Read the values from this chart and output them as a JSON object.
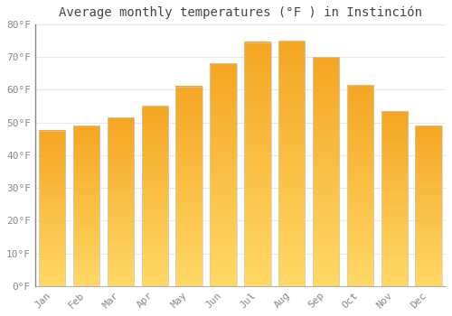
{
  "title": "Average monthly temperatures (°F ) in Instinción",
  "months": [
    "Jan",
    "Feb",
    "Mar",
    "Apr",
    "May",
    "Jun",
    "Jul",
    "Aug",
    "Sep",
    "Oct",
    "Nov",
    "Dec"
  ],
  "values": [
    47.5,
    49.0,
    51.5,
    55.0,
    61.0,
    68.0,
    74.5,
    75.0,
    70.0,
    61.5,
    53.5,
    49.0
  ],
  "bar_color_top": "#F5A623",
  "bar_color_bottom": "#FFD966",
  "bar_edge_color": "#CCCCCC",
  "background_color": "#FFFFFF",
  "grid_color": "#E8E8E8",
  "title_color": "#444444",
  "tick_color": "#888888",
  "ylim": [
    0,
    80
  ],
  "yticks": [
    0,
    10,
    20,
    30,
    40,
    50,
    60,
    70,
    80
  ],
  "ytick_labels": [
    "0°F",
    "10°F",
    "20°F",
    "30°F",
    "40°F",
    "50°F",
    "60°F",
    "70°F",
    "80°F"
  ],
  "title_fontsize": 10,
  "tick_fontsize": 8
}
